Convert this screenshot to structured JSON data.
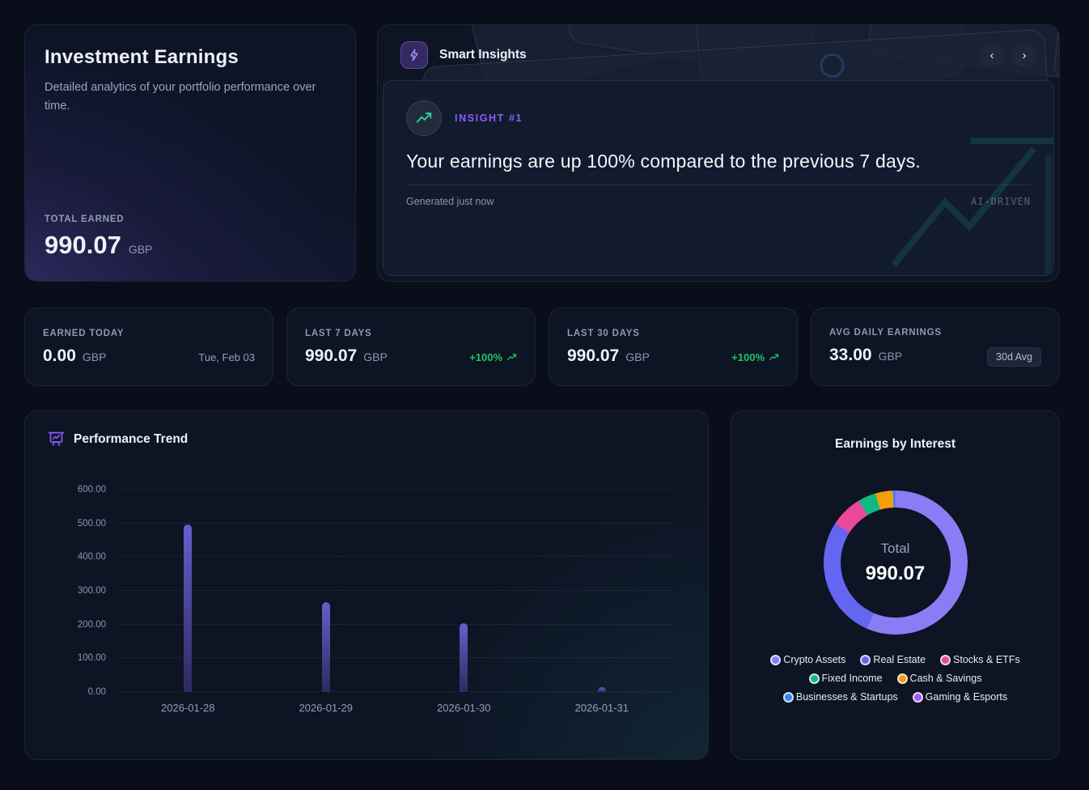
{
  "hero": {
    "title": "Investment Earnings",
    "description": "Detailed analytics of your portfolio performance over time.",
    "total_label": "TOTAL EARNED",
    "total_value": "990.07",
    "currency": "GBP"
  },
  "insights": {
    "title": "Smart Insights",
    "bolt_icon": "lightning-bolt",
    "prev_icon": "chevron-left",
    "next_icon": "chevron-right",
    "prev_glyph": "‹",
    "next_glyph": "›",
    "badge": "INSIGHT #1",
    "headline": "Your earnings are up 100% compared to the previous 7 days.",
    "generated": "Generated just now",
    "watermark": "AI-DRIVEN",
    "accent_color": "#8b5cf6",
    "trend_icon_color": "#34d399"
  },
  "stats": [
    {
      "label": "EARNED TODAY",
      "value": "0.00",
      "currency": "GBP",
      "meta": "Tue, Feb 03",
      "meta_type": "date"
    },
    {
      "label": "LAST 7 DAYS",
      "value": "990.07",
      "currency": "GBP",
      "meta": "+100%",
      "meta_type": "delta"
    },
    {
      "label": "LAST 30 DAYS",
      "value": "990.07",
      "currency": "GBP",
      "meta": "+100%",
      "meta_type": "delta"
    },
    {
      "label": "AVG DAILY EARNINGS",
      "value": "33.00",
      "currency": "GBP",
      "meta": "30d Avg",
      "meta_type": "badge"
    }
  ],
  "delta_color": "#22c55e",
  "chart_data": [
    {
      "type": "bar",
      "title": "Performance Trend",
      "categories": [
        "2026-01-28",
        "2026-01-29",
        "2026-01-30",
        "2026-01-31"
      ],
      "values": [
        497,
        266,
        204,
        14
      ],
      "xlabel": "",
      "ylabel": "",
      "ylim": [
        0,
        600
      ],
      "ytick_step": 100,
      "ytick_labels": [
        "0.00",
        "100.00",
        "200.00",
        "300.00",
        "400.00",
        "500.00",
        "600.00"
      ],
      "grid": "horizontal-dashed",
      "legend_position": "none",
      "bar_gradient_top": "#685dce",
      "bar_gradient_bottom": "#2d2a5e"
    },
    {
      "type": "pie",
      "title": "Earnings by Interest",
      "center_label": "Total",
      "center_value": "990.07",
      "legend_position": "bottom",
      "segments": [
        {
          "label": "Crypto Assets",
          "value": 559,
          "color": "#8b7cf6"
        },
        {
          "label": "Real Estate",
          "value": 274,
          "color": "#6366f1"
        },
        {
          "label": "Stocks & ETFs",
          "value": 72,
          "color": "#ec4899"
        },
        {
          "label": "Fixed Income",
          "value": 40,
          "color": "#10b981"
        },
        {
          "label": "Cash & Savings",
          "value": 39,
          "color": "#f59e0b"
        },
        {
          "label": "Businesses & Startups",
          "value": 5.5,
          "color": "#3b82f6"
        },
        {
          "label": "Gaming & Esports",
          "value": 0.57,
          "color": "#a855f7"
        }
      ]
    }
  ]
}
